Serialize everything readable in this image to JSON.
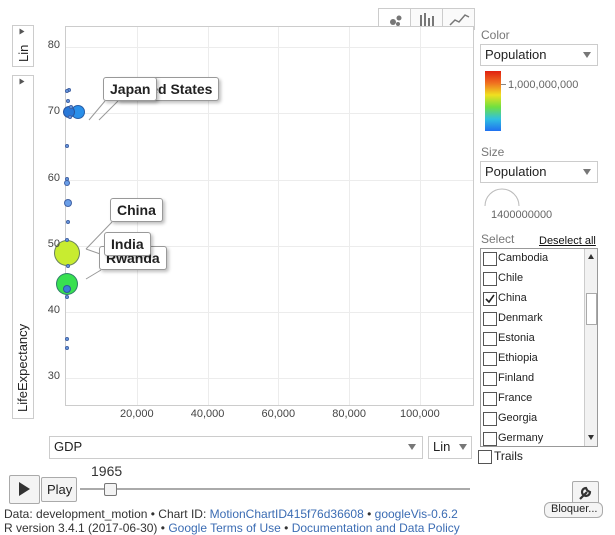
{
  "y_axis": {
    "scale_label": "Lin",
    "variable_label": "LifeExpectancy"
  },
  "x_axis": {
    "variable_label": "GDP",
    "scale_label": "Lin"
  },
  "chart_data": {
    "type": "scatter",
    "year": "1965",
    "xlabel": "GDP",
    "ylabel": "LifeExpectancy",
    "xlim": [
      0,
      115000
    ],
    "ylim": [
      26,
      83
    ],
    "x_ticks": [
      "20,000",
      "40,000",
      "60,000",
      "80,000",
      "100,000"
    ],
    "y_ticks": [
      "30",
      "40",
      "50",
      "60",
      "70",
      "80"
    ],
    "points": [
      {
        "name": "United States",
        "x": 3500,
        "y": 70.2,
        "r": 7,
        "color": "#2a90ea"
      },
      {
        "name": "Japan",
        "x": 900,
        "y": 70.2,
        "r": 6,
        "color": "#2878d8"
      },
      {
        "name": "China",
        "x": 300,
        "y": 48.9,
        "r": 13,
        "color": "#c8ec30"
      },
      {
        "name": "India",
        "x": 300,
        "y": 44.3,
        "r": 11,
        "color": "#38e050"
      },
      {
        "name": "Rwanda",
        "x": 300,
        "y": 43.5,
        "r": 4,
        "color": "#3a7fd8"
      },
      {
        "name": "",
        "x": 500,
        "y": 56.4,
        "r": 4,
        "color": "#6a9ee8"
      },
      {
        "name": "",
        "x": 400,
        "y": 59.5,
        "r": 3,
        "color": "#6a9ee8"
      },
      {
        "name": "",
        "x": 300,
        "y": 60.1,
        "r": 2,
        "color": "#6a9ee8"
      },
      {
        "name": "",
        "x": 300,
        "y": 65.0,
        "r": 2,
        "color": "#6a9ee8"
      },
      {
        "name": "",
        "x": 600,
        "y": 53.6,
        "r": 2,
        "color": "#6a9ee8"
      },
      {
        "name": "",
        "x": 300,
        "y": 35.9,
        "r": 2,
        "color": "#6a9ee8"
      },
      {
        "name": "",
        "x": 300,
        "y": 34.6,
        "r": 2,
        "color": "#6a9ee8"
      },
      {
        "name": "",
        "x": 300,
        "y": 42.3,
        "r": 2,
        "color": "#6a9ee8"
      },
      {
        "name": "",
        "x": 700,
        "y": 71.8,
        "r": 2,
        "color": "#6a9ee8"
      },
      {
        "name": "",
        "x": 900,
        "y": 73.5,
        "r": 2,
        "color": "#6a9ee8"
      },
      {
        "name": "",
        "x": 400,
        "y": 73.4,
        "r": 2,
        "color": "#6a9ee8"
      },
      {
        "name": "",
        "x": 1500,
        "y": 71.0,
        "r": 2,
        "color": "#6a9ee8"
      },
      {
        "name": "",
        "x": 1200,
        "y": 69.4,
        "r": 2,
        "color": "#6a9ee8"
      },
      {
        "name": "",
        "x": 500,
        "y": 47.0,
        "r": 2,
        "color": "#6a9ee8"
      },
      {
        "name": "",
        "x": 400,
        "y": 50.9,
        "r": 2,
        "color": "#6a9ee8"
      }
    ],
    "labels": [
      "United States",
      "Japan",
      "China",
      "India",
      "Rwanda"
    ]
  },
  "panel": {
    "color_label": "Color",
    "color_value": "Population",
    "color_scale_text": "1,000,000,000",
    "size_label": "Size",
    "size_value": "Population",
    "size_scale_text": "1400000000",
    "select_label": "Select",
    "deselect_all": "Deselect all",
    "countries": [
      {
        "name": "Cambodia",
        "checked": false
      },
      {
        "name": "Chile",
        "checked": false
      },
      {
        "name": "China",
        "checked": true
      },
      {
        "name": "Denmark",
        "checked": false
      },
      {
        "name": "Estonia",
        "checked": false
      },
      {
        "name": "Ethiopia",
        "checked": false
      },
      {
        "name": "Finland",
        "checked": false
      },
      {
        "name": "France",
        "checked": false
      },
      {
        "name": "Georgia",
        "checked": false
      },
      {
        "name": "Germany",
        "checked": false
      }
    ],
    "trails_label": "Trails"
  },
  "playback": {
    "year": "1965",
    "play_label": "Play",
    "bloquer_label": "Bloquer..."
  },
  "footer": {
    "data_prefix": "Data: development_motion • Chart ID:",
    "chart_id": "MotionChartID415f76d36608",
    "sep": "•",
    "googlevis": "googleVis-0.6.2",
    "r_version": "R version 3.4.1 (2017-06-30)",
    "sep2": "•",
    "terms": "Google Terms of Use",
    "sep3": "•",
    "policy": "Documentation and Data Policy"
  }
}
